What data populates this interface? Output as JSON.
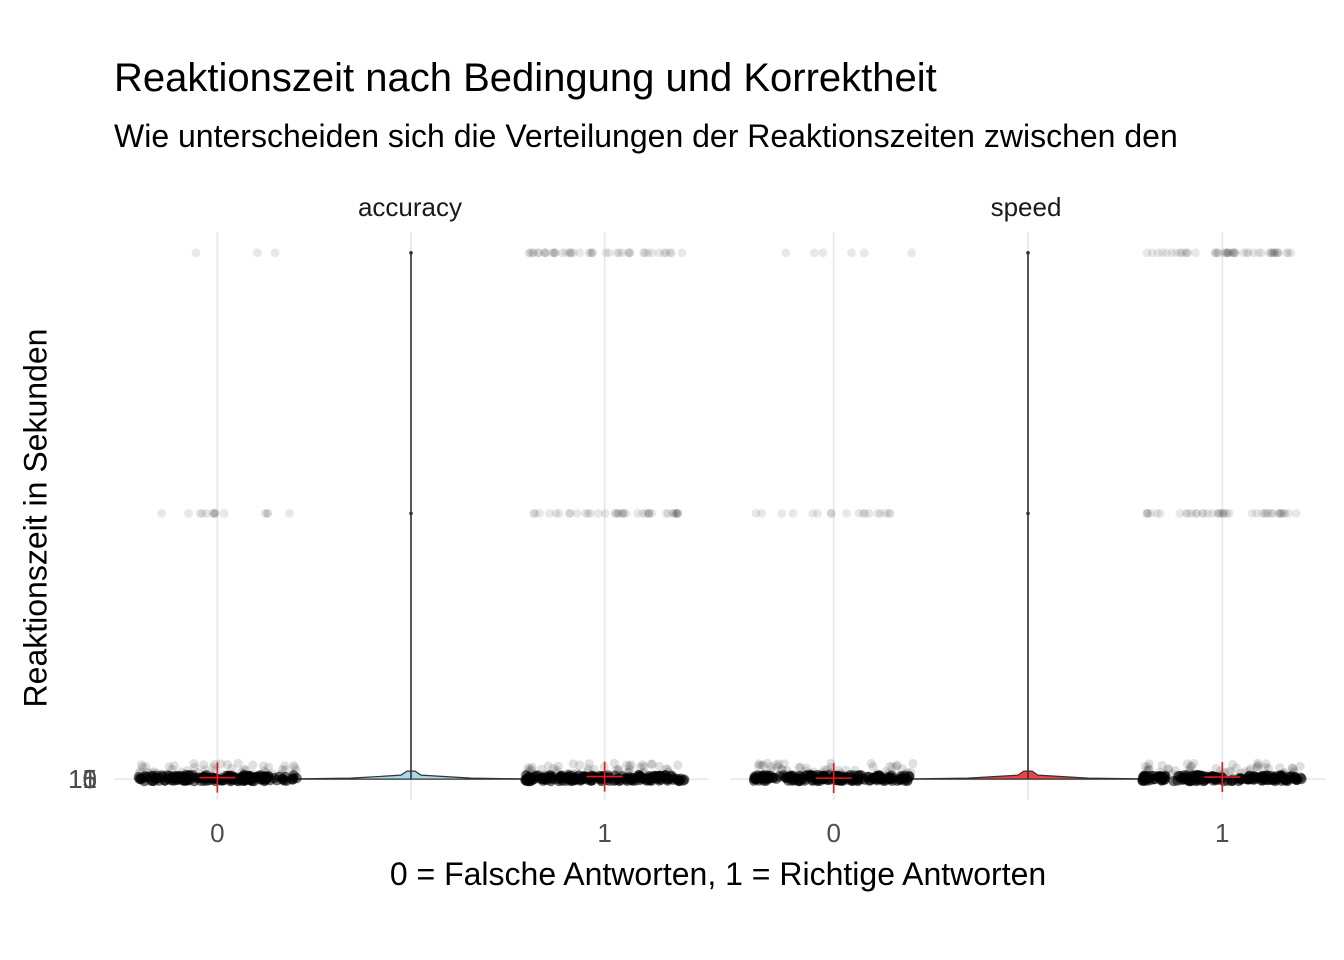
{
  "chart_data": {
    "type": "scatter",
    "title": "Reaktionszeit nach Bedingung und Korrektheit",
    "subtitle": "Wie unterscheiden sich die Verteilungen der Reaktionszeiten zwischen den",
    "xlabel": "0 = Falsche Antworten, 1 = Richtige Antworten",
    "ylabel": "Reaktionszeit in Sekunden",
    "facets": [
      {
        "label": "accuracy",
        "violin_color": "#a8d8ea",
        "categories": [
          "0",
          "1"
        ],
        "outlier_bands": [
          {
            "y": 2.02,
            "n0": 3,
            "n1": 42
          },
          {
            "y": 1.02,
            "n0": 14,
            "n1": 38
          }
        ],
        "means": [
          0.006,
          0.01
        ]
      },
      {
        "label": "speed",
        "violin_color": "#ef4444",
        "categories": [
          "0",
          "1"
        ],
        "outlier_bands": [
          {
            "y": 2.02,
            "n0": 6,
            "n1": 46
          },
          {
            "y": 1.02,
            "n0": 18,
            "n1": 40
          }
        ],
        "means": [
          0.004,
          0.008
        ]
      }
    ],
    "y_tick_labels": [
      "1",
      "5",
      "10",
      "15"
    ],
    "ylim": [
      -0.08,
      2.1
    ],
    "mean_marker_color": "#e41a1c",
    "grid": true
  }
}
